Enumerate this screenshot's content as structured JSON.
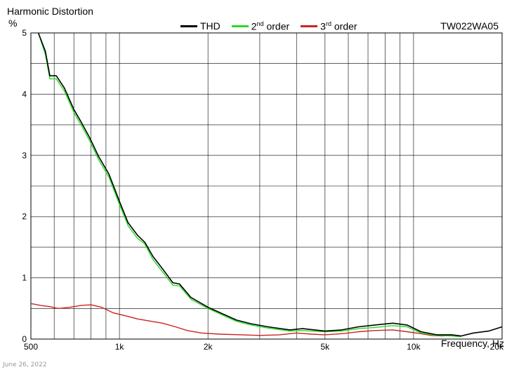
{
  "chart_data": {
    "type": "line",
    "title": "Harmonic Distortion",
    "ylabel": "%",
    "xlabel": "Frequency, Hz",
    "model": "TW022WA05",
    "date": "June 26, 2022",
    "xscale": "log",
    "xlim": [
      500,
      20000
    ],
    "ylim": [
      0,
      5
    ],
    "grid": true,
    "legend_position": "top",
    "x_ticks": [
      {
        "value": 500,
        "label": "500"
      },
      {
        "value": 1000,
        "label": "1k"
      },
      {
        "value": 2000,
        "label": "2k"
      },
      {
        "value": 5000,
        "label": "5k"
      },
      {
        "value": 10000,
        "label": "10k"
      },
      {
        "value": 20000,
        "label": "20k"
      }
    ],
    "y_ticks": [
      {
        "value": 0,
        "label": "0"
      },
      {
        "value": 1,
        "label": "1"
      },
      {
        "value": 2,
        "label": "2"
      },
      {
        "value": 3,
        "label": "3"
      },
      {
        "value": 4,
        "label": "4"
      },
      {
        "value": 5,
        "label": "5"
      }
    ],
    "series": [
      {
        "name": "THD",
        "color": "#000000",
        "points": [
          [
            530,
            5.0
          ],
          [
            560,
            4.7
          ],
          [
            580,
            4.3
          ],
          [
            610,
            4.3
          ],
          [
            650,
            4.1
          ],
          [
            700,
            3.75
          ],
          [
            740,
            3.55
          ],
          [
            790,
            3.3
          ],
          [
            850,
            2.98
          ],
          [
            920,
            2.7
          ],
          [
            1000,
            2.25
          ],
          [
            1070,
            1.9
          ],
          [
            1150,
            1.7
          ],
          [
            1220,
            1.58
          ],
          [
            1300,
            1.35
          ],
          [
            1400,
            1.15
          ],
          [
            1520,
            0.92
          ],
          [
            1600,
            0.9
          ],
          [
            1750,
            0.68
          ],
          [
            2000,
            0.52
          ],
          [
            2200,
            0.43
          ],
          [
            2500,
            0.31
          ],
          [
            2800,
            0.25
          ],
          [
            3200,
            0.2
          ],
          [
            3800,
            0.15
          ],
          [
            4200,
            0.17
          ],
          [
            5000,
            0.13
          ],
          [
            5700,
            0.15
          ],
          [
            6500,
            0.2
          ],
          [
            7400,
            0.23
          ],
          [
            8500,
            0.26
          ],
          [
            9500,
            0.23
          ],
          [
            10600,
            0.12
          ],
          [
            12000,
            0.07
          ],
          [
            13500,
            0.07
          ],
          [
            14500,
            0.05
          ],
          [
            16000,
            0.1
          ],
          [
            18000,
            0.13
          ],
          [
            20000,
            0.2
          ]
        ]
      },
      {
        "name": "2nd order",
        "color": "#22dd22",
        "points": [
          [
            530,
            5.0
          ],
          [
            560,
            4.65
          ],
          [
            580,
            4.25
          ],
          [
            610,
            4.25
          ],
          [
            650,
            4.05
          ],
          [
            700,
            3.7
          ],
          [
            740,
            3.5
          ],
          [
            790,
            3.25
          ],
          [
            850,
            2.93
          ],
          [
            920,
            2.65
          ],
          [
            1000,
            2.2
          ],
          [
            1070,
            1.85
          ],
          [
            1150,
            1.65
          ],
          [
            1220,
            1.55
          ],
          [
            1300,
            1.3
          ],
          [
            1400,
            1.1
          ],
          [
            1520,
            0.88
          ],
          [
            1600,
            0.87
          ],
          [
            1750,
            0.65
          ],
          [
            2000,
            0.5
          ],
          [
            2200,
            0.41
          ],
          [
            2500,
            0.29
          ],
          [
            2800,
            0.23
          ],
          [
            3200,
            0.18
          ],
          [
            3800,
            0.13
          ],
          [
            4200,
            0.14
          ],
          [
            5000,
            0.12
          ],
          [
            5700,
            0.13
          ],
          [
            6500,
            0.17
          ],
          [
            7400,
            0.19
          ],
          [
            8500,
            0.22
          ],
          [
            9500,
            0.2
          ],
          [
            10600,
            0.1
          ],
          [
            12000,
            0.06
          ],
          [
            13500,
            0.05
          ],
          [
            14500,
            0.04
          ]
        ]
      },
      {
        "name": "3rd order",
        "color": "#cc2222",
        "points": [
          [
            500,
            0.58
          ],
          [
            540,
            0.55
          ],
          [
            580,
            0.53
          ],
          [
            620,
            0.5
          ],
          [
            680,
            0.52
          ],
          [
            740,
            0.55
          ],
          [
            800,
            0.56
          ],
          [
            870,
            0.52
          ],
          [
            950,
            0.43
          ],
          [
            1050,
            0.38
          ],
          [
            1150,
            0.33
          ],
          [
            1250,
            0.3
          ],
          [
            1400,
            0.26
          ],
          [
            1550,
            0.2
          ],
          [
            1700,
            0.14
          ],
          [
            1900,
            0.1
          ],
          [
            2200,
            0.08
          ],
          [
            2600,
            0.07
          ],
          [
            3000,
            0.06
          ],
          [
            3500,
            0.07
          ],
          [
            4000,
            0.1
          ],
          [
            4500,
            0.08
          ],
          [
            5000,
            0.07
          ],
          [
            5800,
            0.09
          ],
          [
            6500,
            0.12
          ],
          [
            7400,
            0.14
          ],
          [
            8500,
            0.15
          ],
          [
            9500,
            0.12
          ],
          [
            10500,
            0.09
          ],
          [
            11500,
            0.06
          ],
          [
            12500,
            0.05
          ],
          [
            13500,
            0.06
          ],
          [
            14500,
            0.05
          ]
        ]
      }
    ]
  },
  "legend": {
    "thd_label": "THD",
    "second_label_main": "2",
    "second_label_sup": "nd",
    "second_label_rest": " order",
    "third_label_main": "3",
    "third_label_sup": "rd",
    "third_label_rest": " order"
  }
}
